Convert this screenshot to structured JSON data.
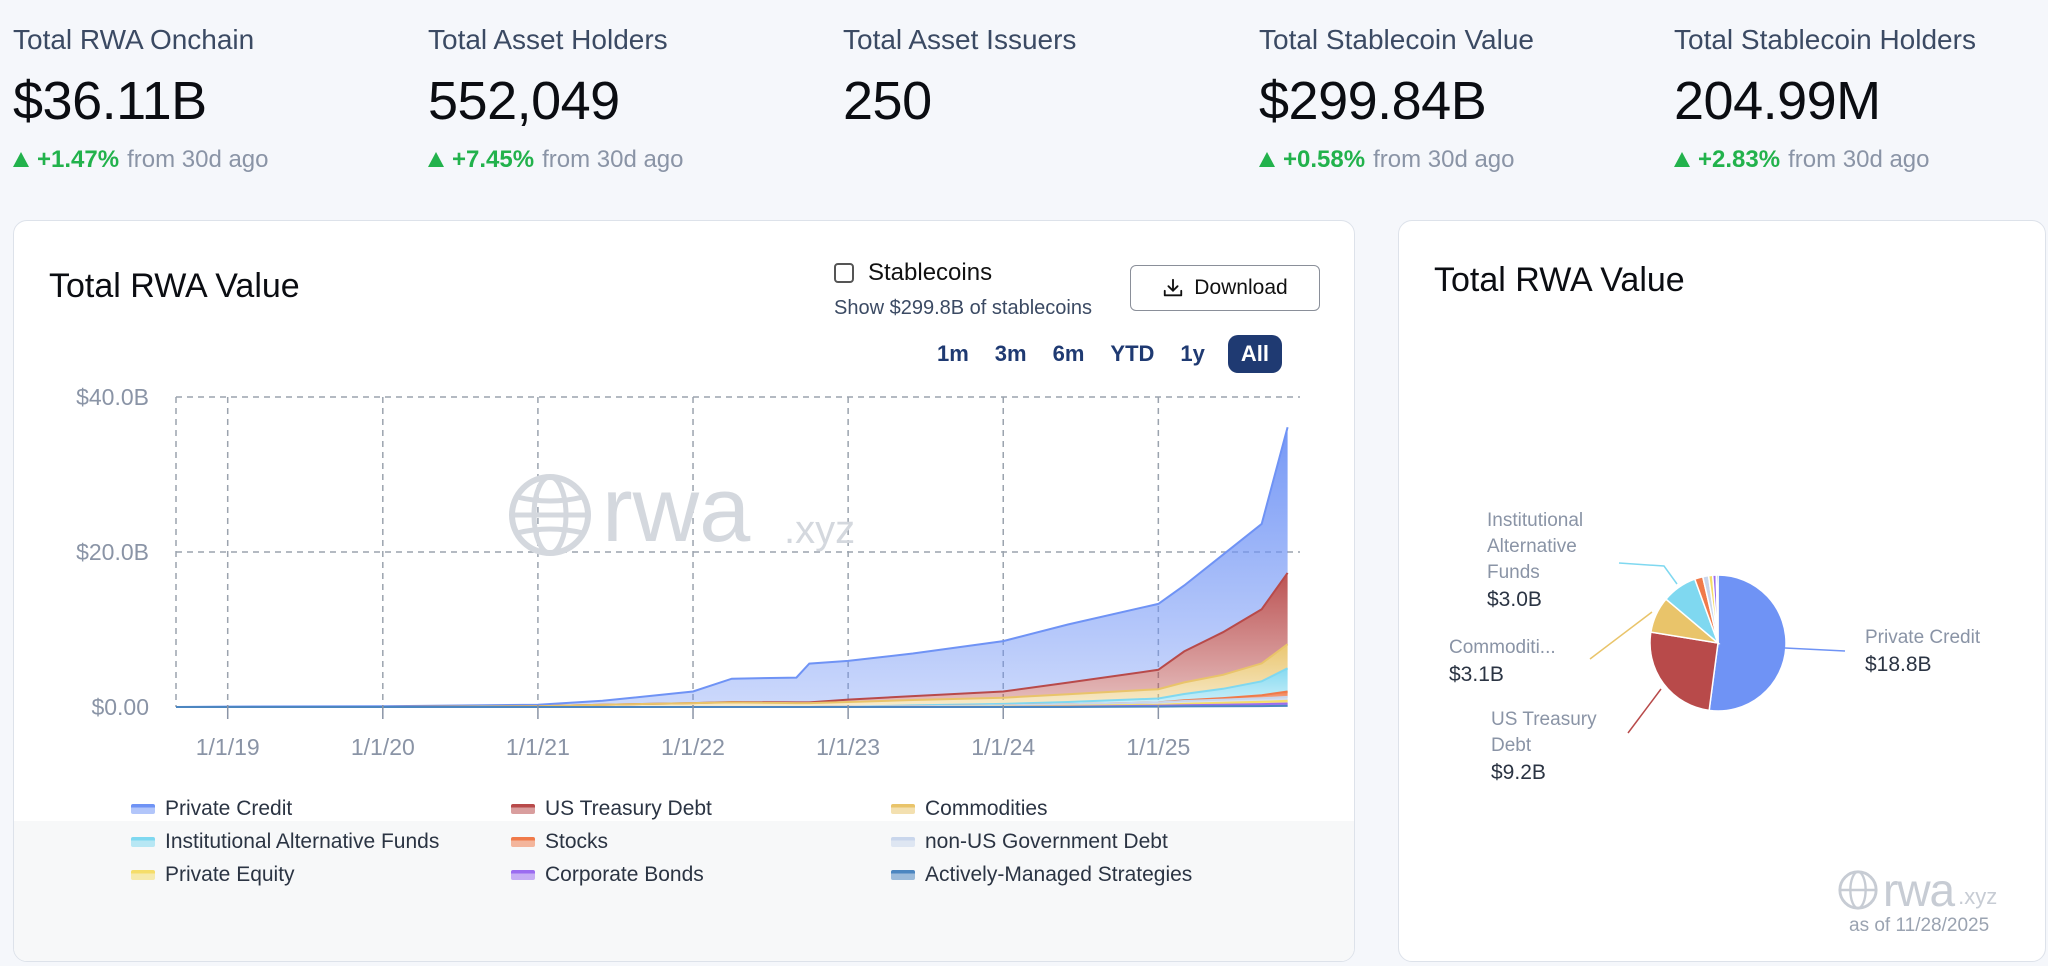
{
  "stats": [
    {
      "label": "Total RWA Onchain",
      "value": "$36.11B",
      "change": "+1.47%",
      "from": "from 30d ago"
    },
    {
      "label": "Total Asset Holders",
      "value": "552,049",
      "change": "+7.45%",
      "from": "from 30d ago"
    },
    {
      "label": "Total Asset Issuers",
      "value": "250"
    },
    {
      "label": "Total Stablecoin Value",
      "value": "$299.84B",
      "change": "+0.58%",
      "from": "from 30d ago"
    },
    {
      "label": "Total Stablecoin Holders",
      "value": "204.99M",
      "change": "+2.83%",
      "from": "from 30d ago"
    }
  ],
  "left_card": {
    "title": "Total RWA Value",
    "stablecoins_label": "Stablecoins",
    "stablecoins_sub": "Show $299.8B of stablecoins",
    "download_label": "Download",
    "ranges": [
      "1m",
      "3m",
      "6m",
      "YTD",
      "1y",
      "All"
    ],
    "active_range": "All",
    "watermark": "rwa",
    "watermark_suffix": ".xyz"
  },
  "right_card": {
    "title": "Total RWA Value",
    "watermark": "rwa",
    "watermark_suffix": ".xyz",
    "as_of": "as of 11/28/2025"
  },
  "colors": {
    "private_credit": "#6f93f5",
    "us_treasury": "#b84a4a",
    "commodities": "#e9c46a",
    "institutional": "#7fd8f0",
    "stocks": "#f07a4a",
    "non_us_gov": "#c9d6ec",
    "private_equity": "#f5dd6a",
    "corporate_bonds": "#9b6cf0",
    "active_strategies": "#4c86c0",
    "positive": "#22b24c"
  },
  "chart_data": [
    {
      "type": "area",
      "title": "Total RWA Value",
      "xlabel": "",
      "ylabel": "",
      "y_tick_labels": [
        "$0.00",
        "$20.0B",
        "$40.0B"
      ],
      "x_tick_labels": [
        "1/1/19",
        "1/1/20",
        "1/1/21",
        "1/1/22",
        "1/1/23",
        "1/1/24",
        "1/1/25"
      ],
      "ylim": [
        0,
        40
      ],
      "y_unit": "B USD",
      "grid": true,
      "legend_position": "bottom",
      "stacked": true,
      "x": [
        "2018-09",
        "2019-01",
        "2020-01",
        "2021-01",
        "2021-06",
        "2022-01",
        "2022-04",
        "2022-09",
        "2022-10",
        "2023-01",
        "2023-06",
        "2024-01",
        "2024-06",
        "2025-01",
        "2025-03",
        "2025-06",
        "2025-09",
        "2025-11"
      ],
      "series": [
        {
          "name": "Private Credit",
          "values": [
            0.0,
            0.05,
            0.1,
            0.2,
            0.5,
            1.5,
            3.0,
            3.2,
            5.0,
            5.0,
            5.5,
            6.5,
            7.5,
            8.5,
            8.5,
            10.0,
            11.0,
            18.8
          ]
        },
        {
          "name": "US Treasury Debt",
          "values": [
            0.0,
            0.0,
            0.0,
            0.0,
            0.0,
            0.0,
            0.05,
            0.1,
            0.1,
            0.3,
            0.5,
            0.8,
            1.5,
            2.5,
            4.0,
            5.5,
            7.0,
            9.2
          ]
        },
        {
          "name": "Commodities",
          "values": [
            0.0,
            0.0,
            0.0,
            0.1,
            0.3,
            0.5,
            0.6,
            0.5,
            0.5,
            0.6,
            0.7,
            0.8,
            1.0,
            1.2,
            1.5,
            1.8,
            2.3,
            3.1
          ]
        },
        {
          "name": "Institutional Alternative Funds",
          "values": [
            0.0,
            0.0,
            0.0,
            0.0,
            0.0,
            0.0,
            0.0,
            0.0,
            0.0,
            0.0,
            0.1,
            0.2,
            0.3,
            0.5,
            0.8,
            1.2,
            1.8,
            3.0
          ]
        },
        {
          "name": "Stocks",
          "values": [
            0.0,
            0.0,
            0.0,
            0.0,
            0.0,
            0.0,
            0.0,
            0.0,
            0.0,
            0.0,
            0.0,
            0.0,
            0.0,
            0.0,
            0.1,
            0.2,
            0.4,
            0.7
          ]
        },
        {
          "name": "non-US Government Debt",
          "values": [
            0.0,
            0.0,
            0.0,
            0.0,
            0.0,
            0.0,
            0.0,
            0.0,
            0.0,
            0.05,
            0.1,
            0.15,
            0.2,
            0.3,
            0.35,
            0.4,
            0.45,
            0.5
          ]
        },
        {
          "name": "Private Equity",
          "values": [
            0.0,
            0.0,
            0.0,
            0.0,
            0.0,
            0.0,
            0.0,
            0.0,
            0.0,
            0.0,
            0.0,
            0.05,
            0.1,
            0.15,
            0.2,
            0.25,
            0.3,
            0.35
          ]
        },
        {
          "name": "Corporate Bonds",
          "values": [
            0.0,
            0.0,
            0.0,
            0.0,
            0.0,
            0.0,
            0.0,
            0.0,
            0.0,
            0.0,
            0.0,
            0.0,
            0.05,
            0.1,
            0.15,
            0.2,
            0.25,
            0.3
          ]
        },
        {
          "name": "Actively-Managed Strategies",
          "values": [
            0.0,
            0.0,
            0.0,
            0.0,
            0.0,
            0.0,
            0.0,
            0.0,
            0.0,
            0.0,
            0.0,
            0.0,
            0.0,
            0.05,
            0.08,
            0.1,
            0.12,
            0.15
          ]
        }
      ]
    },
    {
      "type": "pie",
      "title": "Total RWA Value",
      "slices": [
        {
          "name": "Private Credit",
          "value": 18.8,
          "label": "Private Credit",
          "value_label": "$18.8B"
        },
        {
          "name": "US Treasury Debt",
          "value": 9.2,
          "label": "US Treasury Debt",
          "value_label": "$9.2B"
        },
        {
          "name": "Commodities",
          "value": 3.1,
          "label": "Commoditi...",
          "value_label": "$3.1B"
        },
        {
          "name": "Institutional Alternative Funds",
          "value": 3.0,
          "label": "Institutional Alternative Funds",
          "value_label": "$3.0B"
        },
        {
          "name": "Stocks",
          "value": 0.7
        },
        {
          "name": "non-US Government Debt",
          "value": 0.5
        },
        {
          "name": "Private Equity",
          "value": 0.35
        },
        {
          "name": "Corporate Bonds",
          "value": 0.3
        },
        {
          "name": "Actively-Managed Strategies",
          "value": 0.15
        }
      ]
    }
  ]
}
